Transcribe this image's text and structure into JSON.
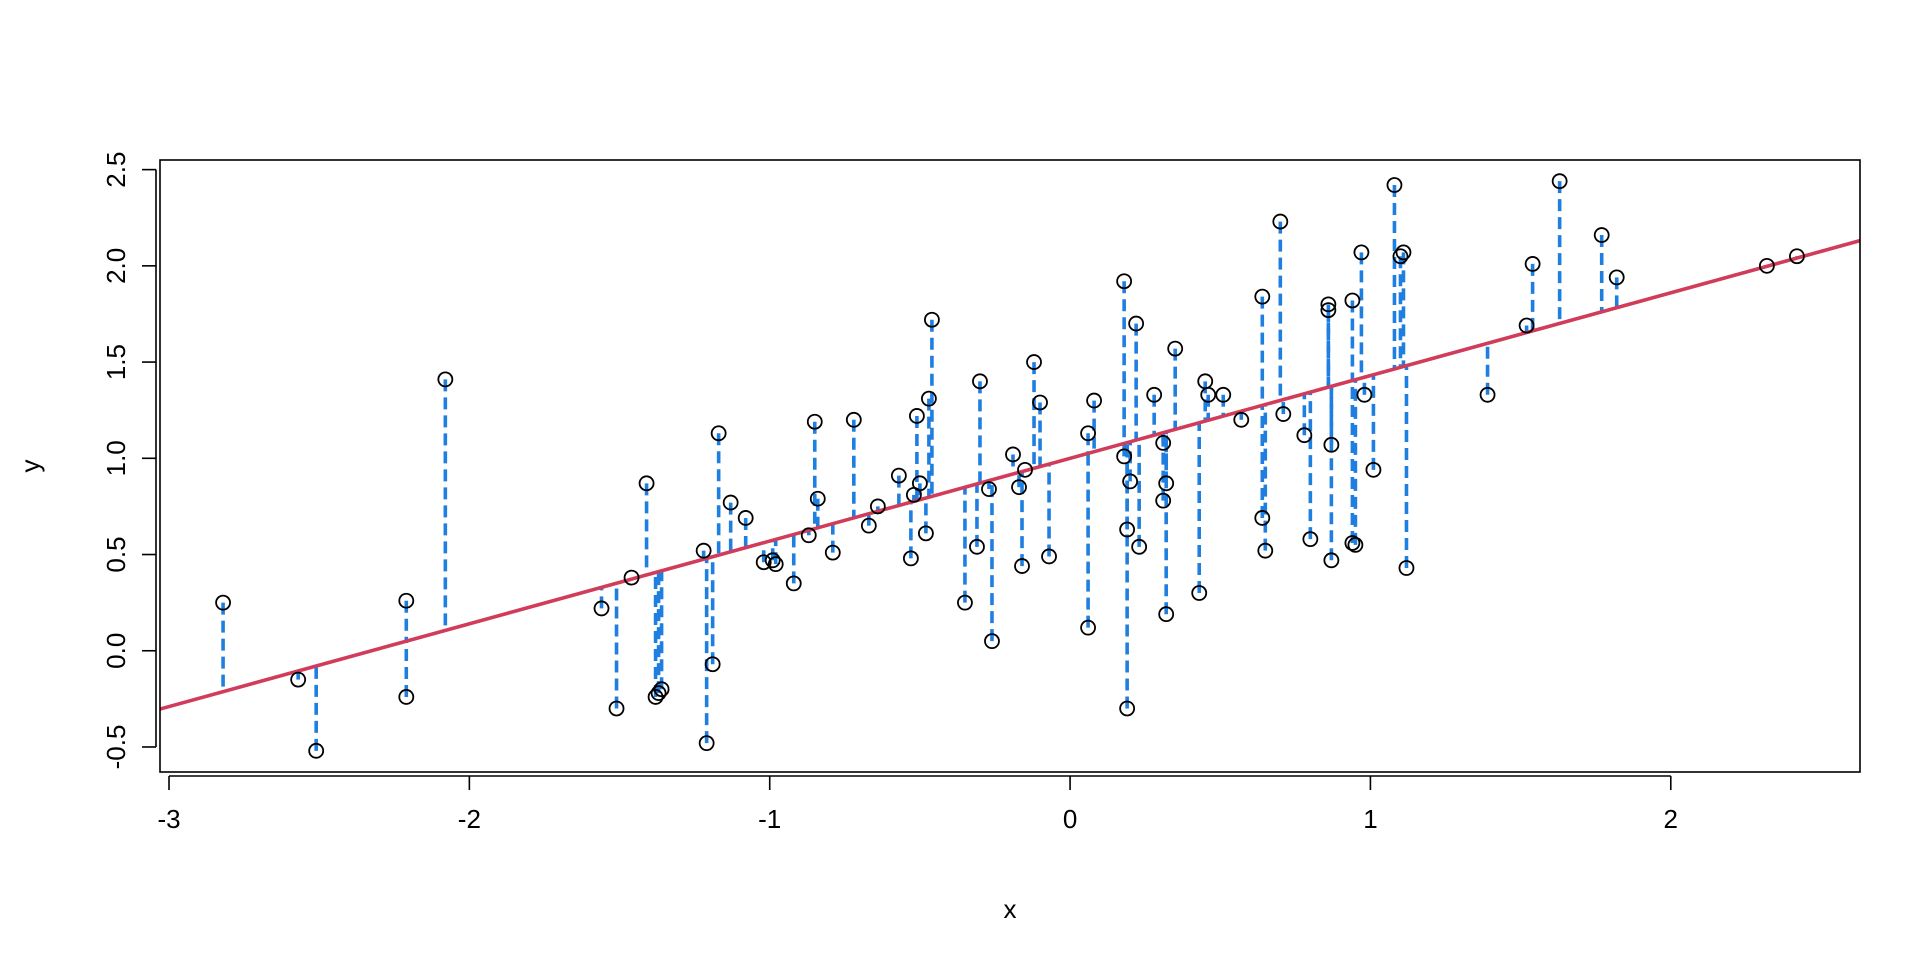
{
  "chart_data": {
    "type": "scatter",
    "title": "",
    "xlabel": "x",
    "ylabel": "y",
    "xlim": [
      -3.03,
      2.63
    ],
    "ylim": [
      -0.63,
      2.55
    ],
    "x_ticks": [
      -3,
      -2,
      -1,
      0,
      1,
      2
    ],
    "x_tick_labels": [
      "-3",
      "-2",
      "-1",
      "0",
      "1",
      "2"
    ],
    "y_ticks": [
      -0.5,
      0.0,
      0.5,
      1.0,
      1.5,
      2.0,
      2.5
    ],
    "y_tick_labels": [
      "-0.5",
      "0.0",
      "0.5",
      "1.0",
      "1.5",
      "2.0",
      "2.5"
    ],
    "grid": false,
    "regression_line": {
      "intercept": 1.0,
      "slope": 0.43,
      "color": "#d03c5a"
    },
    "residual_color": "#1f7fe0",
    "point_color": "#000000",
    "points": [
      {
        "x": -2.82,
        "y": 0.25
      },
      {
        "x": -2.57,
        "y": -0.15
      },
      {
        "x": -2.51,
        "y": -0.52
      },
      {
        "x": -2.21,
        "y": 0.26
      },
      {
        "x": -2.21,
        "y": -0.24
      },
      {
        "x": -2.08,
        "y": 1.41
      },
      {
        "x": -1.56,
        "y": 0.22
      },
      {
        "x": -1.51,
        "y": -0.3
      },
      {
        "x": -1.46,
        "y": 0.38
      },
      {
        "x": -1.41,
        "y": 0.87
      },
      {
        "x": -1.38,
        "y": -0.24
      },
      {
        "x": -1.37,
        "y": -0.22
      },
      {
        "x": -1.36,
        "y": -0.2
      },
      {
        "x": -1.22,
        "y": 0.52
      },
      {
        "x": -1.21,
        "y": -0.48
      },
      {
        "x": -1.19,
        "y": -0.07
      },
      {
        "x": -1.17,
        "y": 1.13
      },
      {
        "x": -1.13,
        "y": 0.77
      },
      {
        "x": -1.08,
        "y": 0.69
      },
      {
        "x": -1.02,
        "y": 0.46
      },
      {
        "x": -0.99,
        "y": 0.47
      },
      {
        "x": -0.98,
        "y": 0.45
      },
      {
        "x": -0.92,
        "y": 0.35
      },
      {
        "x": -0.87,
        "y": 0.6
      },
      {
        "x": -0.85,
        "y": 1.19
      },
      {
        "x": -0.84,
        "y": 0.79
      },
      {
        "x": -0.79,
        "y": 0.51
      },
      {
        "x": -0.72,
        "y": 1.2
      },
      {
        "x": -0.67,
        "y": 0.65
      },
      {
        "x": -0.64,
        "y": 0.75
      },
      {
        "x": -0.57,
        "y": 0.91
      },
      {
        "x": -0.53,
        "y": 0.48
      },
      {
        "x": -0.52,
        "y": 0.81
      },
      {
        "x": -0.51,
        "y": 1.22
      },
      {
        "x": -0.5,
        "y": 0.87
      },
      {
        "x": -0.48,
        "y": 0.61
      },
      {
        "x": -0.47,
        "y": 1.31
      },
      {
        "x": -0.46,
        "y": 1.72
      },
      {
        "x": -0.35,
        "y": 0.25
      },
      {
        "x": -0.31,
        "y": 0.54
      },
      {
        "x": -0.3,
        "y": 1.4
      },
      {
        "x": -0.27,
        "y": 0.84
      },
      {
        "x": -0.26,
        "y": 0.05
      },
      {
        "x": -0.19,
        "y": 1.02
      },
      {
        "x": -0.17,
        "y": 0.85
      },
      {
        "x": -0.16,
        "y": 0.44
      },
      {
        "x": -0.15,
        "y": 0.94
      },
      {
        "x": -0.12,
        "y": 1.5
      },
      {
        "x": -0.1,
        "y": 1.29
      },
      {
        "x": -0.07,
        "y": 0.49
      },
      {
        "x": 0.06,
        "y": 0.12
      },
      {
        "x": 0.06,
        "y": 1.13
      },
      {
        "x": 0.08,
        "y": 1.3
      },
      {
        "x": 0.18,
        "y": 1.01
      },
      {
        "x": 0.18,
        "y": 1.92
      },
      {
        "x": 0.19,
        "y": 0.63
      },
      {
        "x": 0.19,
        "y": -0.3
      },
      {
        "x": 0.2,
        "y": 0.88
      },
      {
        "x": 0.22,
        "y": 1.7
      },
      {
        "x": 0.23,
        "y": 0.54
      },
      {
        "x": 0.28,
        "y": 1.33
      },
      {
        "x": 0.31,
        "y": 0.78
      },
      {
        "x": 0.31,
        "y": 1.08
      },
      {
        "x": 0.32,
        "y": 0.87
      },
      {
        "x": 0.32,
        "y": 0.19
      },
      {
        "x": 0.35,
        "y": 1.57
      },
      {
        "x": 0.43,
        "y": 0.3
      },
      {
        "x": 0.45,
        "y": 1.4
      },
      {
        "x": 0.46,
        "y": 1.33
      },
      {
        "x": 0.51,
        "y": 1.33
      },
      {
        "x": 0.57,
        "y": 1.2
      },
      {
        "x": 0.64,
        "y": 1.84
      },
      {
        "x": 0.64,
        "y": 0.69
      },
      {
        "x": 0.65,
        "y": 0.52
      },
      {
        "x": 0.7,
        "y": 2.23
      },
      {
        "x": 0.71,
        "y": 1.23
      },
      {
        "x": 0.78,
        "y": 1.12
      },
      {
        "x": 0.8,
        "y": 0.58
      },
      {
        "x": 0.86,
        "y": 1.8
      },
      {
        "x": 0.86,
        "y": 1.77
      },
      {
        "x": 0.87,
        "y": 1.07
      },
      {
        "x": 0.87,
        "y": 0.47
      },
      {
        "x": 0.94,
        "y": 1.82
      },
      {
        "x": 0.94,
        "y": 0.56
      },
      {
        "x": 0.95,
        "y": 0.55
      },
      {
        "x": 0.97,
        "y": 2.07
      },
      {
        "x": 0.98,
        "y": 1.33
      },
      {
        "x": 1.01,
        "y": 0.94
      },
      {
        "x": 1.08,
        "y": 2.42
      },
      {
        "x": 1.1,
        "y": 2.05
      },
      {
        "x": 1.11,
        "y": 2.07
      },
      {
        "x": 1.12,
        "y": 0.43
      },
      {
        "x": 1.39,
        "y": 1.33
      },
      {
        "x": 1.52,
        "y": 1.69
      },
      {
        "x": 1.54,
        "y": 2.01
      },
      {
        "x": 1.63,
        "y": 2.44
      },
      {
        "x": 1.77,
        "y": 2.16
      },
      {
        "x": 1.82,
        "y": 1.94
      },
      {
        "x": 2.32,
        "y": 2.0
      },
      {
        "x": 2.42,
        "y": 2.05
      }
    ]
  }
}
